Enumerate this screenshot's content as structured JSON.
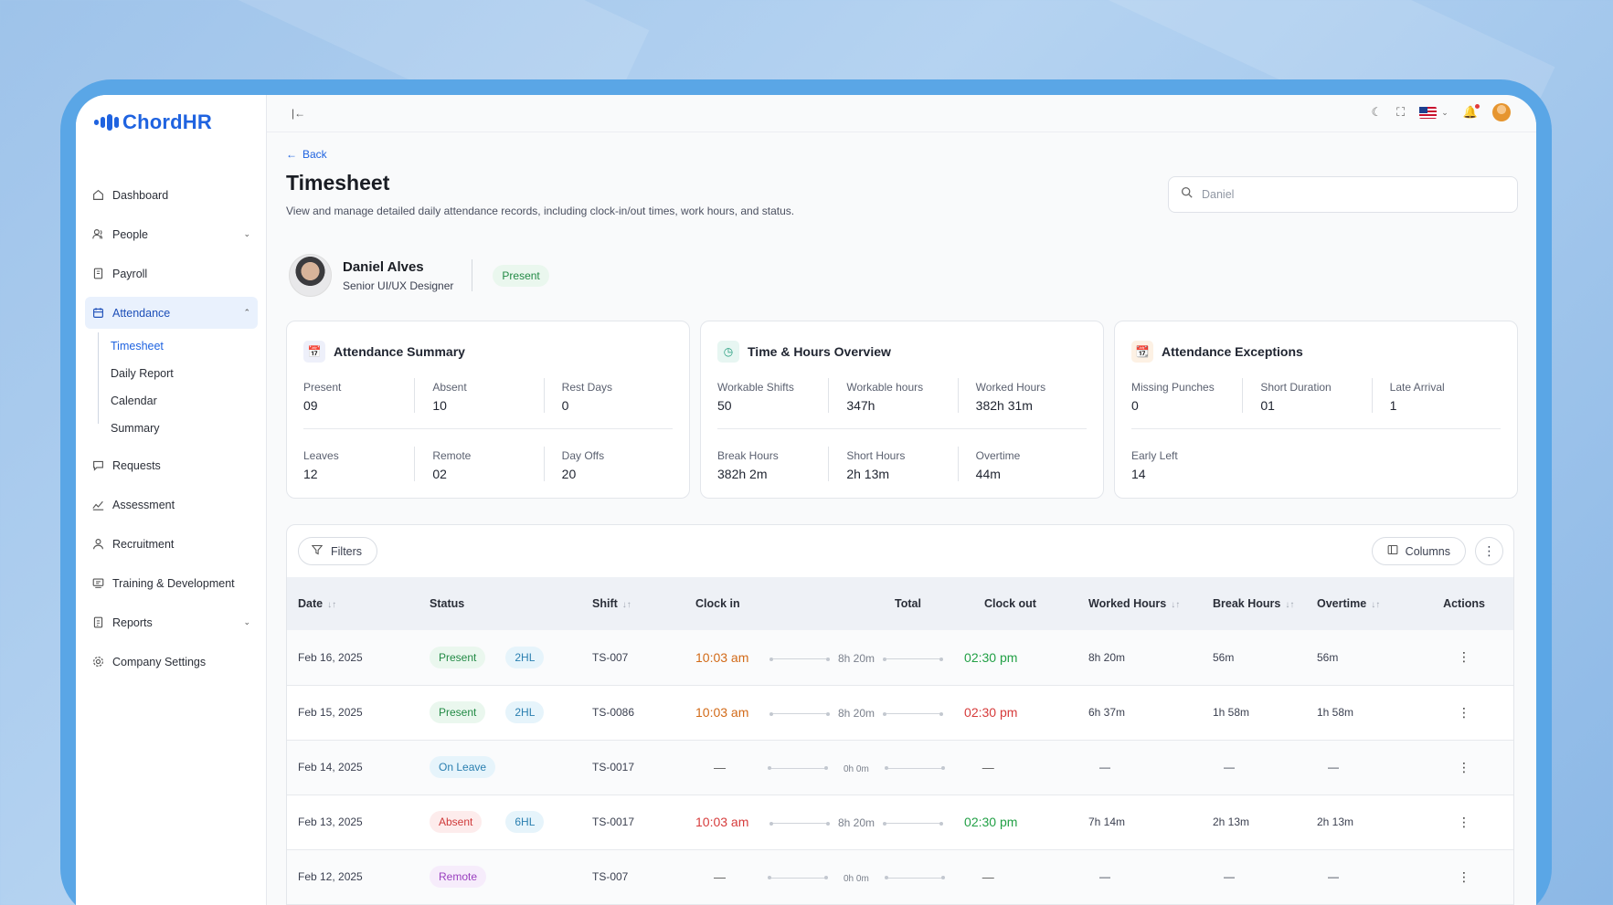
{
  "brand": {
    "name": "ChordHR",
    "color": "#1f63e0"
  },
  "sidebar": {
    "items": [
      {
        "label": "Dashboard",
        "icon": "home-icon"
      },
      {
        "label": "People",
        "icon": "users-icon",
        "expandable": true
      },
      {
        "label": "Payroll",
        "icon": "document-icon"
      },
      {
        "label": "Attendance",
        "icon": "calendar-icon",
        "expanded": true,
        "active": true
      },
      {
        "label": "Requests",
        "icon": "chat-icon"
      },
      {
        "label": "Assessment",
        "icon": "chart-icon"
      },
      {
        "label": "Recruitment",
        "icon": "user-icon"
      },
      {
        "label": "Training & Development",
        "icon": "training-icon"
      },
      {
        "label": "Reports",
        "icon": "report-icon",
        "expandable": true
      },
      {
        "label": "Company Settings",
        "icon": "gear-icon"
      }
    ],
    "attendance_sub": [
      "Timesheet",
      "Daily Report",
      "Calendar",
      "Summary"
    ]
  },
  "page": {
    "back_label": "Back",
    "title": "Timesheet",
    "description": "View and manage detailed daily attendance records, including clock-in/out times, work hours, and status.",
    "search_placeholder": "Daniel"
  },
  "employee": {
    "name": "Daniel Alves",
    "role": "Senior UI/UX Designer",
    "status": "Present"
  },
  "cards": {
    "summary": {
      "title": "Attendance Summary",
      "row1": [
        {
          "label": "Present",
          "value": "09"
        },
        {
          "label": "Absent",
          "value": "10"
        },
        {
          "label": "Rest Days",
          "value": "0"
        }
      ],
      "row2": [
        {
          "label": "Leaves",
          "value": "12"
        },
        {
          "label": "Remote",
          "value": "02"
        },
        {
          "label": "Day Offs",
          "value": "20"
        }
      ]
    },
    "hours": {
      "title": "Time & Hours Overview",
      "row1": [
        {
          "label": "Workable Shifts",
          "value": "50"
        },
        {
          "label": "Workable hours",
          "value": "347h"
        },
        {
          "label": "Worked Hours",
          "value": "382h 31m"
        }
      ],
      "row2": [
        {
          "label": "Break Hours",
          "value": "382h 2m"
        },
        {
          "label": "Short Hours",
          "value": "2h 13m"
        },
        {
          "label": "Overtime",
          "value": "44m"
        }
      ]
    },
    "exceptions": {
      "title": "Attendance Exceptions",
      "row1": [
        {
          "label": "Missing Punches",
          "value": "0"
        },
        {
          "label": "Short Duration",
          "value": "01"
        },
        {
          "label": "Late Arrival",
          "value": "1"
        }
      ],
      "row2": [
        {
          "label": "Early Left",
          "value": "14"
        }
      ]
    }
  },
  "toolbar": {
    "filters_label": "Filters",
    "columns_label": "Columns"
  },
  "table": {
    "headers": [
      "Date",
      "Status",
      "Shift",
      "Clock in",
      "Total",
      "Clock out",
      "Worked Hours",
      "Break Hours",
      "Overtime",
      "Actions"
    ],
    "rows": [
      {
        "date": "Feb 16, 2025",
        "status": "Present",
        "tag": "2HL",
        "shift": "TS-007",
        "clock_in": "10:03 am",
        "total": "8h 20m",
        "clock_out": "02:30 pm",
        "worked": "8h 20m",
        "break": "56m",
        "overtime": "56m"
      },
      {
        "date": "Feb 15, 2025",
        "status": "Present",
        "tag": "2HL",
        "shift": "TS-0086",
        "clock_in": "10:03 am",
        "total": "8h 20m",
        "clock_out": "02:30 pm",
        "worked": "6h 37m",
        "break": "1h 58m",
        "overtime": "1h 58m"
      },
      {
        "date": "Feb 14, 2025",
        "status": "On Leave",
        "tag": "",
        "shift": "TS-0017",
        "clock_in": "—",
        "total": "0h 0m",
        "clock_out": "—",
        "worked": "—",
        "break": "—",
        "overtime": "—"
      },
      {
        "date": "Feb 13, 2025",
        "status": "Absent",
        "tag": "6HL",
        "shift": "TS-0017",
        "clock_in": "10:03 am",
        "total": "8h 20m",
        "clock_out": "02:30 pm",
        "worked": "7h 14m",
        "break": "2h 13m",
        "overtime": "2h 13m"
      },
      {
        "date": "Feb 12, 2025",
        "status": "Remote",
        "tag": "",
        "shift": "TS-007",
        "clock_in": "—",
        "total": "0h 0m",
        "clock_out": "—",
        "worked": "—",
        "break": "—",
        "overtime": "—"
      }
    ]
  }
}
